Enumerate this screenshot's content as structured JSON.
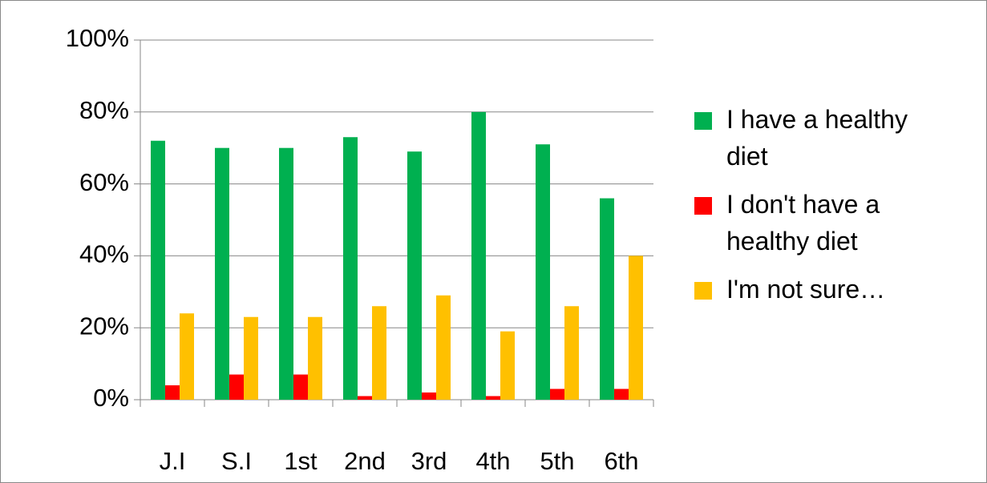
{
  "chart_data": {
    "type": "bar",
    "categories": [
      "J.I",
      "S.I",
      "1st",
      "2nd",
      "3rd",
      "4th",
      "5th",
      "6th"
    ],
    "series": [
      {
        "name": "I have a healthy diet",
        "color": "#00b050",
        "values": [
          72,
          70,
          70,
          73,
          69,
          80,
          71,
          56
        ]
      },
      {
        "name": "I don't have a healthy diet",
        "color": "#ff0000",
        "values": [
          4,
          7,
          7,
          1,
          2,
          1,
          3,
          3
        ]
      },
      {
        "name": "I'm not sure…",
        "color": "#ffc000",
        "values": [
          24,
          23,
          23,
          26,
          29,
          19,
          26,
          40
        ]
      }
    ],
    "ylim": [
      0,
      100
    ],
    "yticks": [
      {
        "value": 0,
        "label": "0%"
      },
      {
        "value": 20,
        "label": "20%"
      },
      {
        "value": 40,
        "label": "40%"
      },
      {
        "value": 60,
        "label": "60%"
      },
      {
        "value": 80,
        "label": "80%"
      },
      {
        "value": 100,
        "label": "100%"
      }
    ],
    "grid": true,
    "legend": "right"
  }
}
